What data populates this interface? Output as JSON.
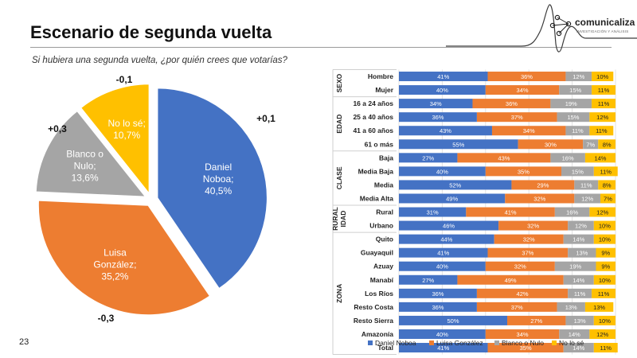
{
  "header": {
    "title": "Escenario de segunda vuelta",
    "subtitle": "Si hubiera una segunda vuelta, ¿por quién crees que votarías?",
    "logo_text": "comunicaliza",
    "logo_sub": "INVESTIGACIÓN Y ANÁLISIS",
    "page_number": "23"
  },
  "colors": {
    "noboa": "#4472C4",
    "gonzalez": "#ED7D31",
    "blanco": "#A5A5A5",
    "nolose": "#FFC000"
  },
  "chart_data": [
    {
      "type": "pie",
      "slices": [
        {
          "label_lines": [
            "Daniel",
            "Noboa;",
            "40,5%"
          ],
          "value": 40.5,
          "change": "+0,1",
          "color": "#4472C4"
        },
        {
          "label_lines": [
            "Luisa",
            "González;",
            "35,2%"
          ],
          "value": 35.2,
          "change": "-0,3",
          "color": "#ED7D31"
        },
        {
          "label_lines": [
            "Blanco o",
            "Nulo;",
            "13,6%"
          ],
          "value": 13.6,
          "change": "+0,3",
          "color": "#A5A5A5"
        },
        {
          "label_lines": [
            "No lo sé;",
            "10,7%"
          ],
          "value": 10.7,
          "change": "-0,1",
          "color": "#FFC000"
        }
      ]
    },
    {
      "type": "bar",
      "stacked": true,
      "orientation": "horizontal",
      "xlim": [
        0,
        100
      ],
      "xticks": [
        "0%",
        "20%",
        "40%",
        "60%",
        "80%",
        "100%"
      ],
      "legend": [
        "Daniel Noboa",
        "Luisa González",
        "Blanco o Nulo",
        "No lo sé"
      ],
      "legend_position": "bottom",
      "groups": [
        {
          "name": "SEXO",
          "start": 0,
          "end": 1
        },
        {
          "name": "EDAD",
          "start": 2,
          "end": 5
        },
        {
          "name": "CLASE",
          "start": 6,
          "end": 9
        },
        {
          "name": "RURAL IDAD",
          "lines": [
            "RURAL",
            "IDAD"
          ],
          "start": 10,
          "end": 11
        },
        {
          "name": "ZONA",
          "start": 12,
          "end": 20
        },
        {
          "name": "T",
          "start": 21,
          "end": 21
        }
      ],
      "categories": [
        "Hombre",
        "Mujer",
        "16 a 24 años",
        "25 a 40 años",
        "41 a 60 años",
        "61 o más",
        "Baja",
        "Media Baja",
        "Media",
        "Media Alta",
        "Rural",
        "Urbano",
        "Quito",
        "Guayaquil",
        "Azuay",
        "Manabí",
        "Los Ríos",
        "Resto Costa",
        "Resto Sierra",
        "Amazonía",
        "Total"
      ],
      "series": [
        {
          "name": "Daniel Noboa",
          "values": [
            41,
            40,
            34,
            36,
            43,
            55,
            27,
            40,
            52,
            49,
            31,
            46,
            44,
            41,
            40,
            27,
            36,
            36,
            50,
            40,
            41
          ]
        },
        {
          "name": "Luisa González",
          "values": [
            36,
            34,
            36,
            37,
            34,
            30,
            43,
            35,
            29,
            32,
            41,
            32,
            32,
            37,
            32,
            49,
            42,
            37,
            27,
            34,
            35
          ]
        },
        {
          "name": "Blanco o Nulo",
          "values": [
            12,
            15,
            19,
            15,
            11,
            7,
            16,
            15,
            11,
            12,
            16,
            12,
            14,
            13,
            19,
            14,
            11,
            13,
            13,
            14,
            14
          ]
        },
        {
          "name": "No lo sé",
          "values": [
            10,
            11,
            11,
            12,
            11,
            8,
            14,
            11,
            8,
            7,
            12,
            10,
            10,
            9,
            9,
            10,
            11,
            13,
            10,
            12,
            11
          ]
        }
      ]
    }
  ]
}
